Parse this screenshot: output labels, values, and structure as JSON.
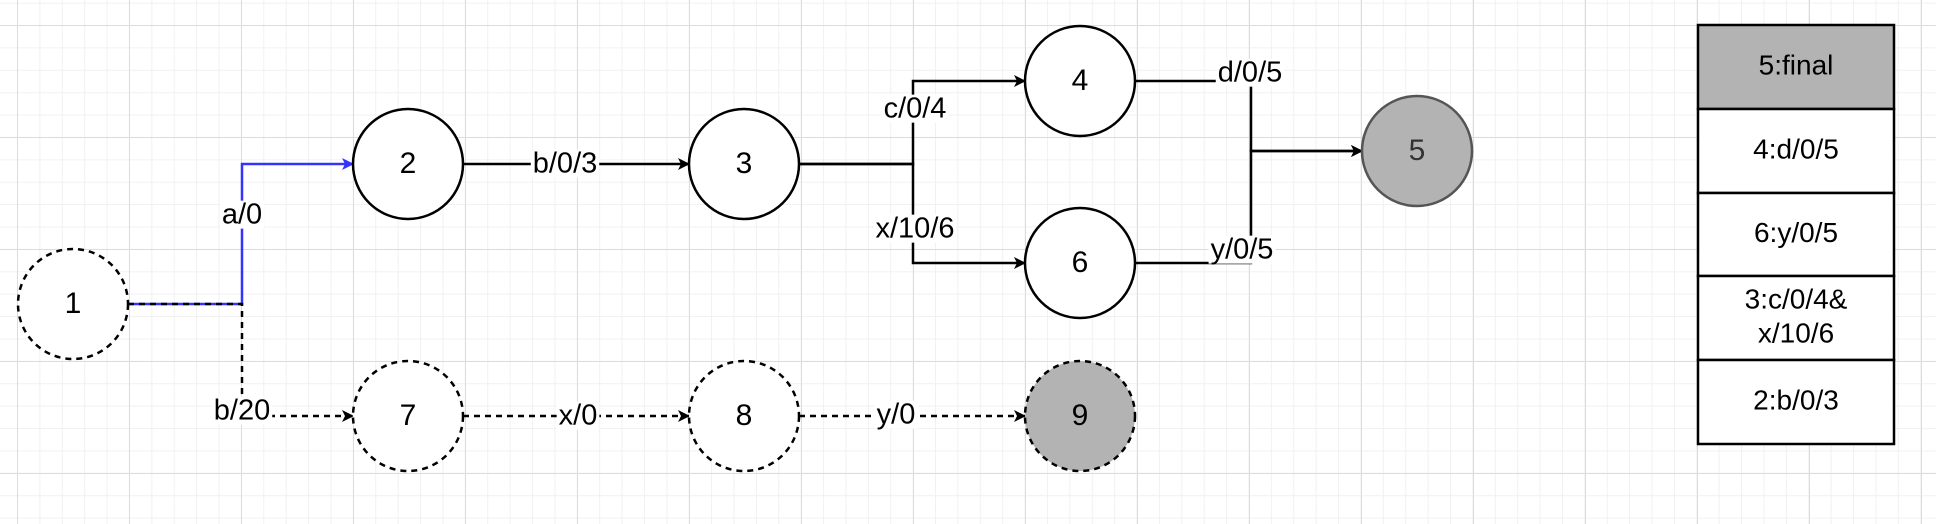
{
  "diagram": {
    "nodes": [
      {
        "id": "1",
        "label": "1",
        "style": "dashed",
        "fill": "#ffffff"
      },
      {
        "id": "2",
        "label": "2",
        "style": "solid",
        "fill": "#ffffff"
      },
      {
        "id": "3",
        "label": "3",
        "style": "solid",
        "fill": "#ffffff"
      },
      {
        "id": "4",
        "label": "4",
        "style": "solid",
        "fill": "#ffffff"
      },
      {
        "id": "5",
        "label": "5",
        "style": "solid",
        "fill": "#b3b3b3"
      },
      {
        "id": "6",
        "label": "6",
        "style": "solid",
        "fill": "#ffffff"
      },
      {
        "id": "7",
        "label": "7",
        "style": "dashed",
        "fill": "#ffffff"
      },
      {
        "id": "8",
        "label": "8",
        "style": "dashed",
        "fill": "#ffffff"
      },
      {
        "id": "9",
        "label": "9",
        "style": "dashed",
        "fill": "#b3b3b3"
      }
    ],
    "edges": [
      {
        "from": "1",
        "to": "2",
        "label": "a/0",
        "style": "highlighted"
      },
      {
        "from": "1",
        "to": "7",
        "label": "b/20",
        "style": "dashed"
      },
      {
        "from": "2",
        "to": "3",
        "label": "b/0/3",
        "style": "solid"
      },
      {
        "from": "3",
        "to": "4",
        "label": "c/0/4",
        "style": "solid"
      },
      {
        "from": "3",
        "to": "6",
        "label": "x/10/6",
        "style": "solid"
      },
      {
        "from": "4",
        "to": "5",
        "label": "d/0/5",
        "style": "solid"
      },
      {
        "from": "6",
        "to": "5",
        "label": "y/0/5",
        "style": "solid"
      },
      {
        "from": "7",
        "to": "8",
        "label": "x/0",
        "style": "dashed"
      },
      {
        "from": "8",
        "to": "9",
        "label": "y/0",
        "style": "dashed"
      }
    ],
    "stack": [
      {
        "lines": [
          "5:final"
        ],
        "fill": "#b3b3b3"
      },
      {
        "lines": [
          "4:d/0/5"
        ],
        "fill": "#ffffff"
      },
      {
        "lines": [
          "6:y/0/5"
        ],
        "fill": "#ffffff"
      },
      {
        "lines": [
          "3:c/0/4&",
          "x/10/6"
        ],
        "fill": "#ffffff"
      },
      {
        "lines": [
          "2:b/0/3"
        ],
        "fill": "#ffffff"
      }
    ]
  },
  "colors": {
    "stroke": "#000000",
    "highlight": "#3333ff",
    "final_fill": "#b3b3b3",
    "node_fill": "#ffffff"
  }
}
